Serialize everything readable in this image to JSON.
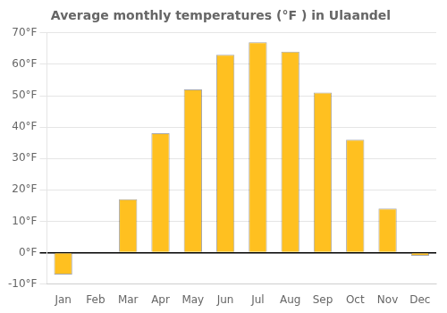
{
  "chart_data": {
    "type": "bar",
    "title": "Average monthly temperatures (°F ) in Ulaandel",
    "categories": [
      "Jan",
      "Feb",
      "Mar",
      "Apr",
      "May",
      "Jun",
      "Jul",
      "Aug",
      "Sep",
      "Oct",
      "Nov",
      "Dec"
    ],
    "values": [
      -7,
      0,
      17,
      38,
      52,
      63,
      67,
      64,
      51,
      36,
      14,
      -1
    ],
    "color": "#FFC020",
    "ylim": [
      -10,
      70
    ],
    "yticks": [
      {
        "value": -10,
        "label": "-10°F"
      },
      {
        "value": 0,
        "label": "0°F"
      },
      {
        "value": 10,
        "label": "10°F"
      },
      {
        "value": 20,
        "label": "20°F"
      },
      {
        "value": 30,
        "label": "30°F"
      },
      {
        "value": 40,
        "label": "40°F"
      },
      {
        "value": 50,
        "label": "50°F"
      },
      {
        "value": 60,
        "label": "60°F"
      },
      {
        "value": 70,
        "label": "70°F"
      }
    ],
    "grid": true
  }
}
